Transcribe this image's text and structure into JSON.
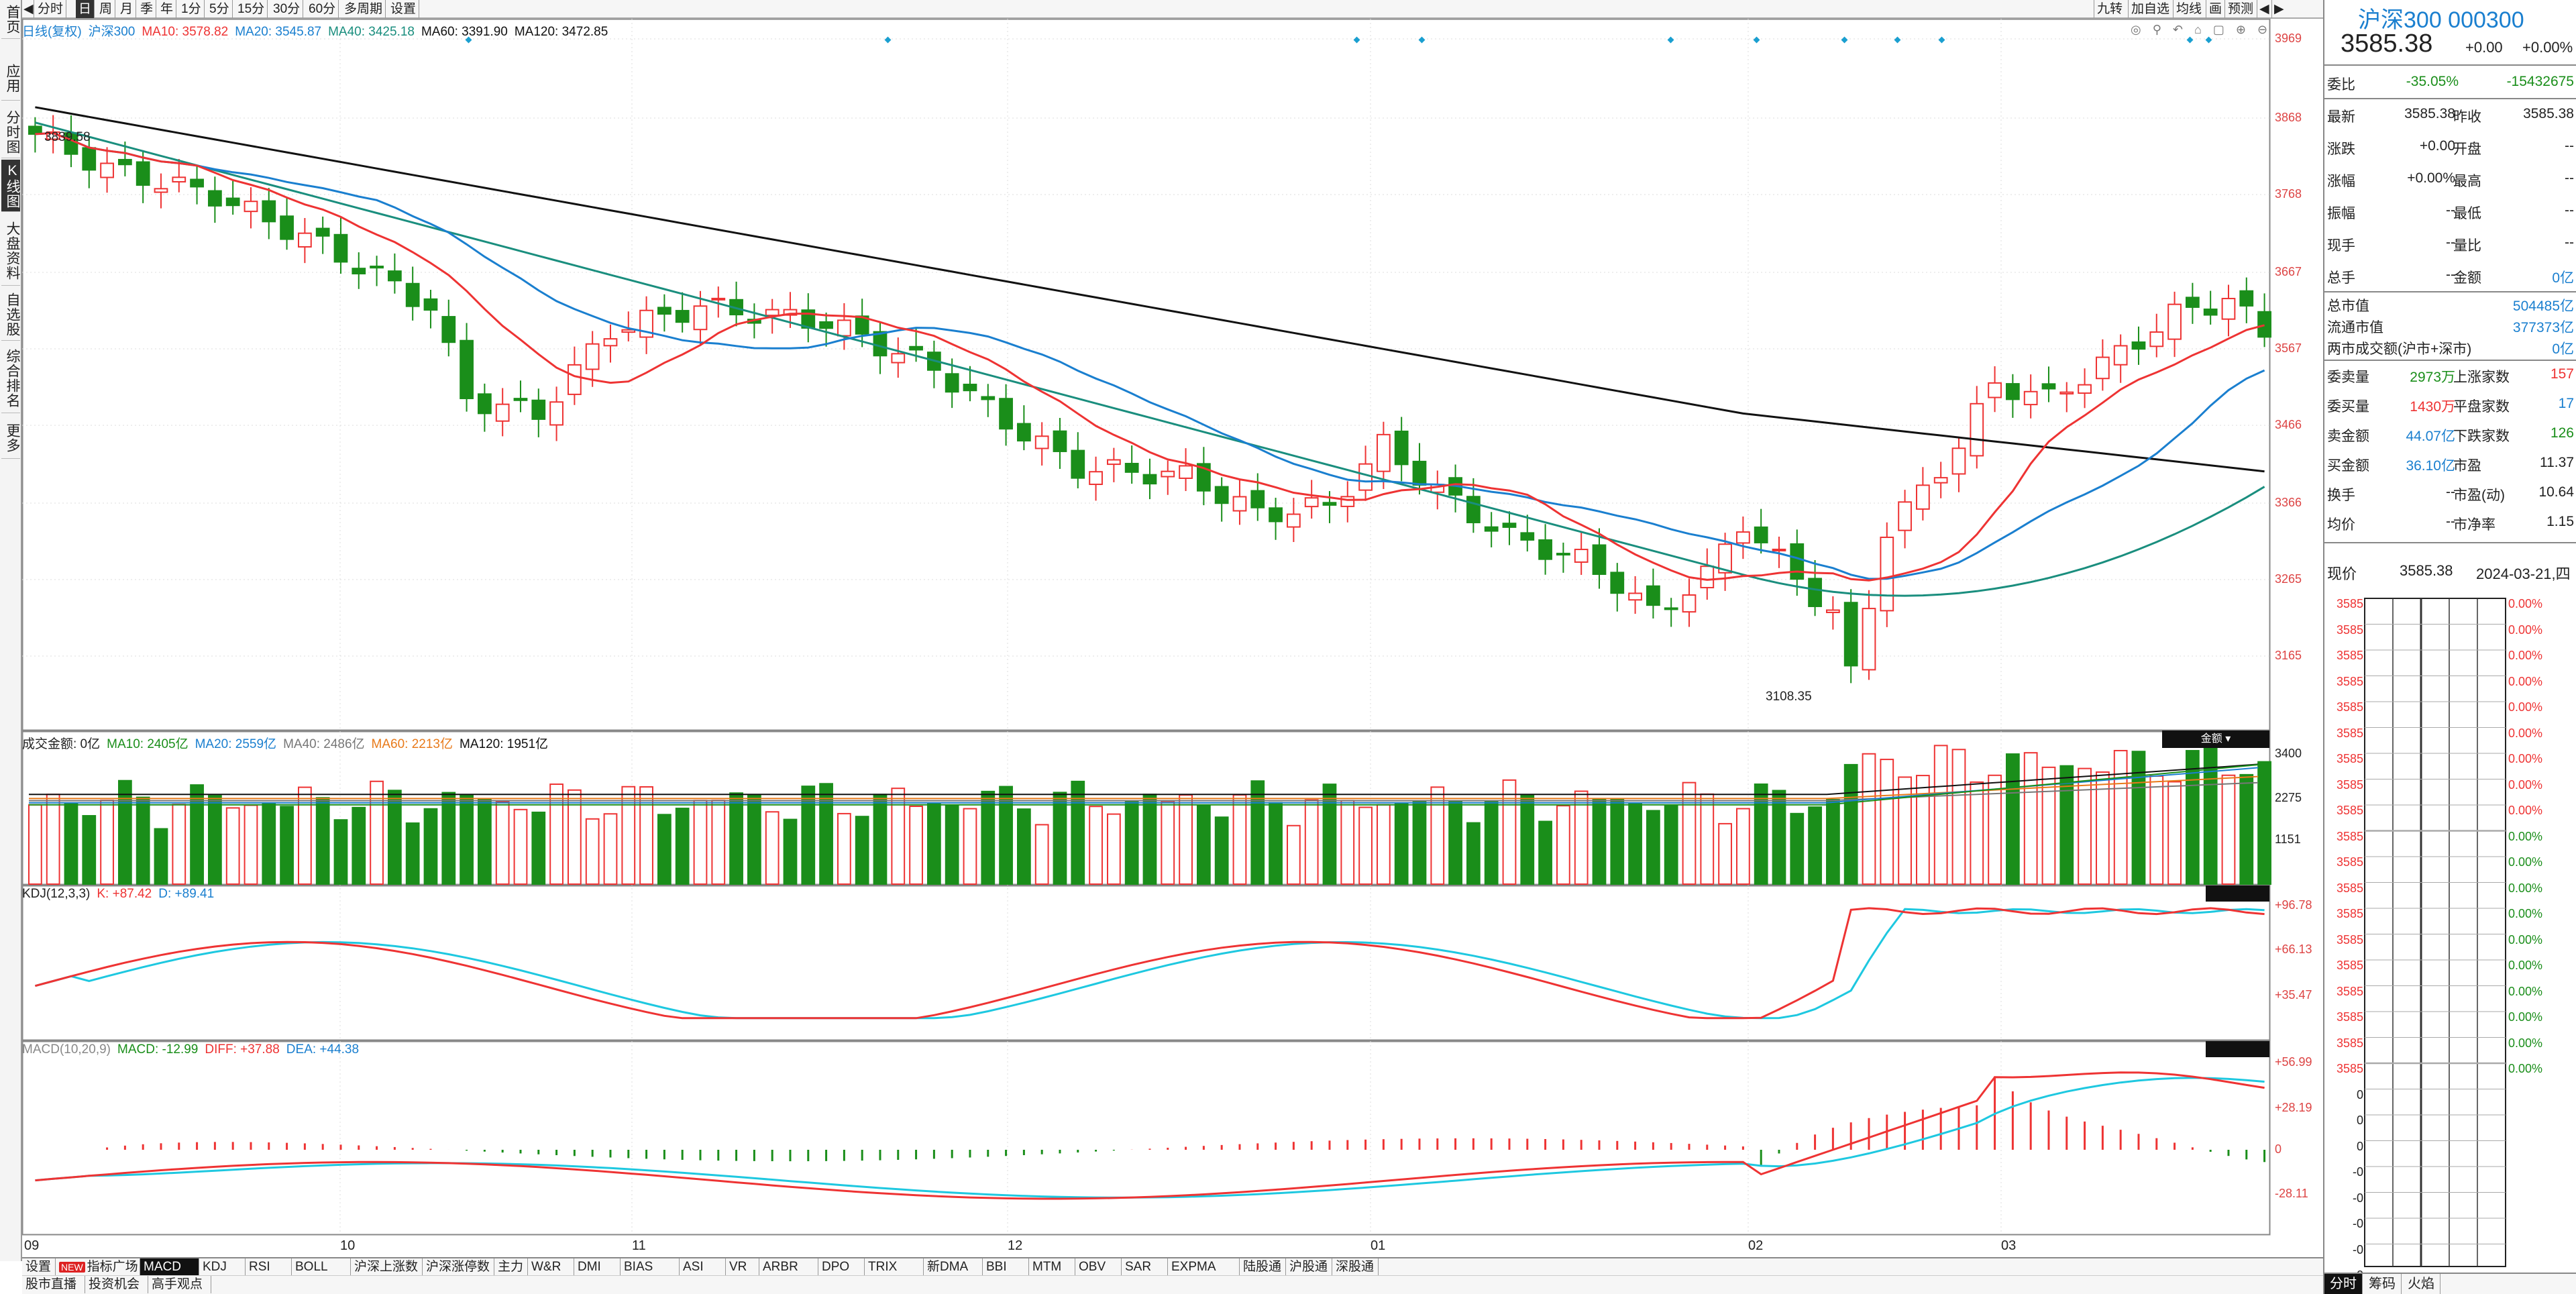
{
  "sidebar": {
    "items": [
      {
        "label": "首页"
      },
      {
        "label": "应用"
      },
      {
        "label": "分时图"
      },
      {
        "label": "K线图"
      },
      {
        "label": "大盘资料"
      },
      {
        "label": "自选股"
      },
      {
        "label": "综合排名"
      },
      {
        "label": "更多"
      }
    ]
  },
  "toolbar": {
    "left_items": [
      "分时",
      "日",
      "周",
      "月",
      "季",
      "年",
      "1分",
      "5分",
      "15分",
      "30分",
      "60分",
      "多周期",
      "设置"
    ],
    "right_items": [
      "九转",
      "加自选",
      "均线",
      "画",
      "预测"
    ]
  },
  "price_pane": {
    "legend": [
      {
        "text": "日线(复权)",
        "color": "#1a7fcf"
      },
      {
        "text": "沪深300",
        "color": "#1a7fcf"
      },
      {
        "text": "MA10: 3578.82",
        "color": "#e33"
      },
      {
        "text": "MA20: 3545.87",
        "color": "#1a7fcf"
      },
      {
        "text": "MA40: 3425.18",
        "color": "#1a8e7e"
      },
      {
        "text": "MA60: 3391.90",
        "color": "#111"
      },
      {
        "text": "MA120: 3472.85",
        "color": "#111"
      }
    ],
    "y_ticks": [
      "3969",
      "3868",
      "3768",
      "3667",
      "3567",
      "3466",
      "3366",
      "3265",
      "3165"
    ],
    "high_label": "3839.58",
    "low_label": "3108.35"
  },
  "volume_pane": {
    "legend": [
      {
        "text": "成交金额: 0亿",
        "color": "#222"
      },
      {
        "text": "MA10: 2405亿",
        "color": "#1a8e1a"
      },
      {
        "text": "MA20: 2559亿",
        "color": "#1a7fcf"
      },
      {
        "text": "MA40: 2486亿",
        "color": "#777"
      },
      {
        "text": "MA60: 2213亿",
        "color": "#e87a1a"
      },
      {
        "text": "MA120: 1951亿",
        "color": "#111"
      }
    ],
    "y_ticks": [
      "3400",
      "2275",
      "1151"
    ],
    "tag": "金额"
  },
  "kdj_pane": {
    "legend": [
      {
        "text": "KDJ(12,3,3)",
        "color": "#222"
      },
      {
        "text": "K: +87.42",
        "color": "#e33"
      },
      {
        "text": "D: +89.41",
        "color": "#1a7fcf"
      }
    ],
    "y_ticks": [
      "+96.78",
      "+66.13",
      "+35.47"
    ]
  },
  "macd_pane": {
    "legend": [
      {
        "text": "MACD(10,20,9)",
        "color": "#888"
      },
      {
        "text": "MACD: -12.99",
        "color": "#1a8e1a"
      },
      {
        "text": "DIFF: +37.88",
        "color": "#e33"
      },
      {
        "text": "DEA: +44.38",
        "color": "#1a7fcf"
      }
    ],
    "y_ticks": [
      "+56.99",
      "+28.19",
      "0",
      "-28.11"
    ]
  },
  "x_axis": {
    "labels": [
      "09",
      "10",
      "11",
      "12",
      "01",
      "02",
      "03"
    ]
  },
  "bottom_tabs": [
    "设置",
    "指标广场",
    "MACD",
    "KDJ",
    "RSI",
    "BOLL",
    "沪深上涨数",
    "沪深涨停数",
    "主力",
    "W&R",
    "DMI",
    "BIAS",
    "ASI",
    "VR",
    "ARBR",
    "DPO",
    "TRIX",
    "新DMA",
    "BBI",
    "MTM",
    "OBV",
    "SAR",
    "EXPMA",
    "陆股通",
    "沪股通",
    "深股通"
  ],
  "bottom_tabs_new_badge": "NEW",
  "bottom_tabs2": [
    "股市直播",
    "投资机会",
    "高手观点"
  ],
  "info": {
    "title": "沪深300 000300",
    "price": "3585.38",
    "change": "+0.00",
    "change_pct": "+0.00%",
    "weibi_label": "委比",
    "weibi_pct": "-35.05%",
    "weibi_val": "-15432675",
    "rows": [
      {
        "l1": "最新",
        "v1": "3585.38",
        "c1": "black",
        "l2": "昨收",
        "v2": "3585.38",
        "c2": "black"
      },
      {
        "l1": "涨跌",
        "v1": "+0.00",
        "c1": "black",
        "l2": "开盘",
        "v2": "--",
        "c2": "black"
      },
      {
        "l1": "涨幅",
        "v1": "+0.00%",
        "c1": "black",
        "l2": "最高",
        "v2": "--",
        "c2": "black"
      },
      {
        "l1": "振幅",
        "v1": "--",
        "c1": "black",
        "l2": "最低",
        "v2": "--",
        "c2": "black"
      },
      {
        "l1": "现手",
        "v1": "--",
        "c1": "black",
        "l2": "量比",
        "v2": "--",
        "c2": "black"
      },
      {
        "l1": "总手",
        "v1": "--",
        "c1": "black",
        "l2": "金额",
        "v2": "0亿",
        "c2": "blue"
      }
    ],
    "cap": [
      {
        "l": "总市值",
        "v": "504485亿"
      },
      {
        "l": "流通市值",
        "v": "377373亿"
      },
      {
        "l": "两市成交额(沪市+深市)",
        "v": "0亿"
      }
    ],
    "rows2": [
      {
        "l1": "委卖量",
        "v1": "2973万",
        "c1": "green",
        "l2": "上涨家数",
        "v2": "157",
        "c2": "red"
      },
      {
        "l1": "委买量",
        "v1": "1430万",
        "c1": "red",
        "l2": "平盘家数",
        "v2": "17",
        "c2": "blue"
      },
      {
        "l1": "卖金额",
        "v1": "44.07亿",
        "c1": "blue",
        "l2": "下跌家数",
        "v2": "126",
        "c2": "green"
      },
      {
        "l1": "买金额",
        "v1": "36.10亿",
        "c1": "blue",
        "l2": "市盈",
        "v2": "11.37",
        "c2": "black"
      },
      {
        "l1": "换手",
        "v1": "--",
        "c1": "black",
        "l2": "市盈(动)",
        "v2": "10.64",
        "c2": "black"
      },
      {
        "l1": "均价",
        "v1": "--",
        "c1": "black",
        "l2": "市净率",
        "v2": "1.15",
        "c2": "black"
      }
    ],
    "mini": {
      "now_label": "现价",
      "now_price": "3585.38",
      "date": "2024-03-21,四",
      "left_values": [
        "3585",
        "3585",
        "3585",
        "3585",
        "3585",
        "3585",
        "3585",
        "3585",
        "3585",
        "3585",
        "3585",
        "3585",
        "3585",
        "3585",
        "3585",
        "3585",
        "3585",
        "3585",
        "3585",
        "0",
        "0",
        "0",
        "-0",
        "-0",
        "-0",
        "-0",
        "-0"
      ],
      "right_values": [
        "0.00%",
        "0.00%",
        "0.00%",
        "0.00%",
        "0.00%",
        "0.00%",
        "0.00%",
        "0.00%",
        "0.00%",
        "0.00%",
        "0.00%",
        "0.00%",
        "0.00%",
        "0.00%",
        "0.00%",
        "0.00%",
        "0.00%",
        "0.00%",
        "0.00%"
      ]
    },
    "bottom_tabs": [
      "分时",
      "筹码",
      "火焰"
    ]
  }
}
